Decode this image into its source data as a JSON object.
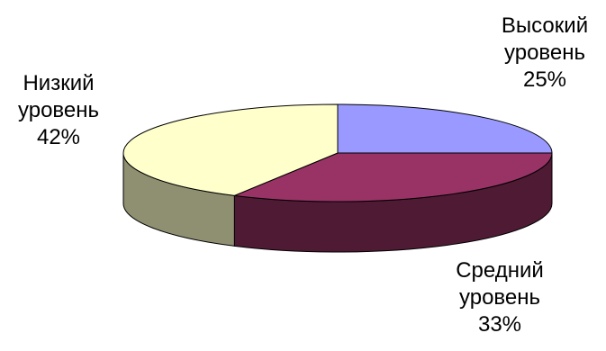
{
  "chart_data": {
    "type": "pie",
    "style": "3d",
    "slices": [
      {
        "name": "Высокий уровень",
        "line1": "Высокий",
        "line2": "уровень",
        "percent_label": "25%",
        "value": 25,
        "top_color": "#9999ff",
        "side_color": "#5e5e9e"
      },
      {
        "name": "Средний уровень",
        "line1": "Средний",
        "line2": "уровень",
        "percent_label": "33%",
        "value": 33,
        "top_color": "#993366",
        "side_color": "#4f1a34"
      },
      {
        "name": "Низкий уровень",
        "line1": "Низкий",
        "line2": "уровень",
        "percent_label": "42%",
        "value": 42,
        "top_color": "#ffffcc",
        "side_color": "#8f8f72"
      }
    ],
    "outline_color": "#000000"
  }
}
